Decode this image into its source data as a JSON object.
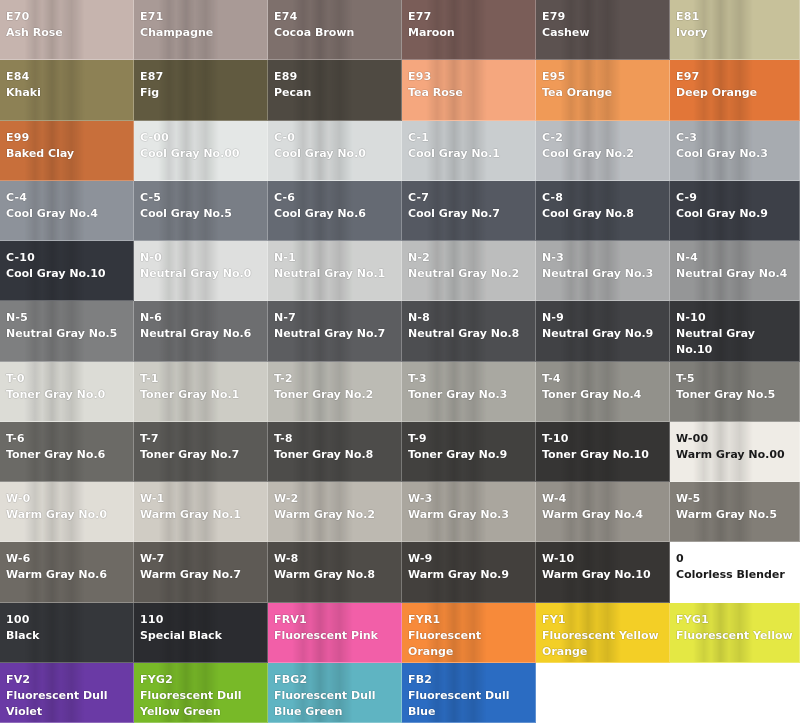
{
  "swatches": [
    {
      "code": "E70",
      "name": "Ash Rose",
      "color": "#c6b4ae"
    },
    {
      "code": "E71",
      "name": "Champagne",
      "color": "#a99a96"
    },
    {
      "code": "E74",
      "name": "Cocoa Brown",
      "color": "#7e706c"
    },
    {
      "code": "E77",
      "name": "Maroon",
      "color": "#7a5d58"
    },
    {
      "code": "E79",
      "name": "Cashew",
      "color": "#5c5250"
    },
    {
      "code": "E81",
      "name": "Ivory",
      "color": "#c7c19a"
    },
    {
      "code": "E84",
      "name": "Khaki",
      "color": "#8d8155"
    },
    {
      "code": "E87",
      "name": "Fig",
      "color": "#615a40"
    },
    {
      "code": "E89",
      "name": "Pecan",
      "color": "#4f4a42"
    },
    {
      "code": "E93",
      "name": "Tea Rose",
      "color": "#f5a77e"
    },
    {
      "code": "E95",
      "name": "Tea Orange",
      "color": "#f09a57"
    },
    {
      "code": "E97",
      "name": "Deep Orange",
      "color": "#e27638"
    },
    {
      "code": "E99",
      "name": "Baked Clay",
      "color": "#c86f3b"
    },
    {
      "code": "C-00",
      "name": "Cool Gray No.00",
      "color": "#e4e7e6"
    },
    {
      "code": "C-0",
      "name": "Cool Gray No.0",
      "color": "#d9dcdc"
    },
    {
      "code": "C-1",
      "name": "Cool Gray No.1",
      "color": "#c9cdcf"
    },
    {
      "code": "C-2",
      "name": "Cool Gray No.2",
      "color": "#b9bcc0"
    },
    {
      "code": "C-3",
      "name": "Cool Gray No.3",
      "color": "#a7abb0"
    },
    {
      "code": "C-4",
      "name": "Cool Gray No.4",
      "color": "#8d929a"
    },
    {
      "code": "C-5",
      "name": "Cool Gray No.5",
      "color": "#797e86"
    },
    {
      "code": "C-6",
      "name": "Cool Gray No.6",
      "color": "#656a73"
    },
    {
      "code": "C-7",
      "name": "Cool Gray No.7",
      "color": "#555962"
    },
    {
      "code": "C-8",
      "name": "Cool Gray No.8",
      "color": "#484c54"
    },
    {
      "code": "C-9",
      "name": "Cool Gray No.9",
      "color": "#3d4048"
    },
    {
      "code": "C-10",
      "name": "Cool Gray No.10",
      "color": "#33363d"
    },
    {
      "code": "N-0",
      "name": "Neutral Gray No.0",
      "color": "#dedfde"
    },
    {
      "code": "N-1",
      "name": "Neutral Gray No.1",
      "color": "#cfd0cf"
    },
    {
      "code": "N-2",
      "name": "Neutral Gray No.2",
      "color": "#bcbdbd"
    },
    {
      "code": "N-3",
      "name": "Neutral Gray No.3",
      "color": "#a9aaab"
    },
    {
      "code": "N-4",
      "name": "Neutral Gray No.4",
      "color": "#959697"
    },
    {
      "code": "N-5",
      "name": "Neutral Gray No.5",
      "color": "#7e7f80"
    },
    {
      "code": "N-6",
      "name": "Neutral Gray No.6",
      "color": "#6d6e70"
    },
    {
      "code": "N-7",
      "name": "Neutral Gray No.7",
      "color": "#5c5d60"
    },
    {
      "code": "N-8",
      "name": "Neutral Gray No.8",
      "color": "#4d4e51"
    },
    {
      "code": "N-9",
      "name": "Neutral Gray No.9",
      "color": "#414245"
    },
    {
      "code": "N-10",
      "name": "Neutral Gray No.10",
      "color": "#36373a"
    },
    {
      "code": "T-0",
      "name": "Toner Gray No.0",
      "color": "#dcdcd6"
    },
    {
      "code": "T-1",
      "name": "Toner Gray No.1",
      "color": "#cdccc5"
    },
    {
      "code": "T-2",
      "name": "Toner Gray No.2",
      "color": "#bcbbb4"
    },
    {
      "code": "T-3",
      "name": "Toner Gray No.3",
      "color": "#a9a8a1"
    },
    {
      "code": "T-4",
      "name": "Toner Gray No.4",
      "color": "#92918b"
    },
    {
      "code": "T-5",
      "name": "Toner Gray No.5",
      "color": "#7f7e79"
    },
    {
      "code": "T-6",
      "name": "Toner Gray No.6",
      "color": "#6b6a66"
    },
    {
      "code": "T-7",
      "name": "Toner Gray No.7",
      "color": "#5b5a57"
    },
    {
      "code": "T-8",
      "name": "Toner Gray No.8",
      "color": "#4d4c4a"
    },
    {
      "code": "T-9",
      "name": "Toner Gray No.9",
      "color": "#42413f"
    },
    {
      "code": "T-10",
      "name": "Toner Gray No.10",
      "color": "#363534"
    },
    {
      "code": "W-00",
      "name": "Warm Gray No.00",
      "color": "#efece6"
    },
    {
      "code": "W-0",
      "name": "Warm Gray No.0",
      "color": "#e0ddd6"
    },
    {
      "code": "W-1",
      "name": "Warm Gray No.1",
      "color": "#d0ccc4"
    },
    {
      "code": "W-2",
      "name": "Warm Gray No.2",
      "color": "#bdb9b1"
    },
    {
      "code": "W-3",
      "name": "Warm Gray No.3",
      "color": "#aaa69e"
    },
    {
      "code": "W-4",
      "name": "Warm Gray No.4",
      "color": "#95918a"
    },
    {
      "code": "W-5",
      "name": "Warm Gray No.5",
      "color": "#827e77"
    },
    {
      "code": "W-6",
      "name": "Warm Gray No.6",
      "color": "#6e6a64"
    },
    {
      "code": "W-7",
      "name": "Warm Gray No.7",
      "color": "#5e5a55"
    },
    {
      "code": "W-8",
      "name": "Warm Gray No.8",
      "color": "#4f4c48"
    },
    {
      "code": "W-9",
      "name": "Warm Gray No.9",
      "color": "#43403d"
    },
    {
      "code": "W-10",
      "name": "Warm Gray No.10",
      "color": "#383634"
    },
    {
      "code": "0",
      "name": "Colorless Blender",
      "color": "#ffffff"
    },
    {
      "code": "100",
      "name": "Black",
      "color": "#35373b"
    },
    {
      "code": "110",
      "name": "Special Black",
      "color": "#2b2c30"
    },
    {
      "code": "FRV1",
      "name": "Fluorescent Pink",
      "color": "#f25fa8"
    },
    {
      "code": "FYR1",
      "name": "Fluorescent Orange",
      "color": "#f78a3a"
    },
    {
      "code": "FY1",
      "name": "Fluorescent Yellow Orange",
      "color": "#f3cf26"
    },
    {
      "code": "FYG1",
      "name": "Fluorescent Yellow",
      "color": "#e4e844"
    },
    {
      "code": "FV2",
      "name": "Fluorescent Dull Violet",
      "color": "#6a3aa5"
    },
    {
      "code": "FYG2",
      "name": "Fluorescent Dull Yellow Green",
      "color": "#78b928"
    },
    {
      "code": "FBG2",
      "name": "Fluorescent Dull Blue Green",
      "color": "#5fb4c2"
    },
    {
      "code": "FB2",
      "name": "Fluorescent Dull Blue",
      "color": "#2b6cc2"
    }
  ],
  "dark_text_codes": [
    "0",
    "W-00"
  ]
}
